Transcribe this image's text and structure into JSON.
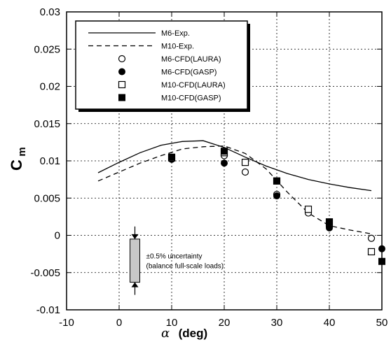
{
  "chart_data": {
    "type": "line",
    "xlabel_symbol": "α",
    "xlabel_unit": "(deg)",
    "ylabel_main": "C",
    "ylabel_sub": "m",
    "xlim": [
      -10,
      50
    ],
    "ylim": [
      -0.01,
      0.03
    ],
    "x_ticks": [
      "-10",
      "0",
      "10",
      "20",
      "30",
      "40",
      "50"
    ],
    "y_ticks": [
      "-0.01",
      "-0.005",
      "0",
      "0.005",
      "0.01",
      "0.015",
      "0.02",
      "0.025",
      "0.03"
    ],
    "grid": true,
    "legend_position": "top-left",
    "series": [
      {
        "name": "M6-Exp.",
        "kind": "line",
        "style": "solid",
        "x": [
          -4,
          0,
          4,
          8,
          12,
          16,
          20,
          24,
          28,
          32,
          36,
          40,
          44,
          48
        ],
        "y": [
          0.0084,
          0.0098,
          0.0111,
          0.0121,
          0.0126,
          0.0127,
          0.0118,
          0.0105,
          0.0093,
          0.0083,
          0.0075,
          0.0069,
          0.0064,
          0.006
        ]
      },
      {
        "name": "M10-Exp.",
        "kind": "line",
        "style": "dashed",
        "x": [
          -4,
          0,
          4,
          8,
          12,
          16,
          20,
          24,
          28,
          32,
          36,
          40,
          44,
          48
        ],
        "y": [
          0.0073,
          0.0085,
          0.0097,
          0.0107,
          0.0116,
          0.0119,
          0.012,
          0.011,
          0.0089,
          0.0058,
          0.003,
          0.0013,
          0.0007,
          0.0002
        ]
      },
      {
        "name": "M6-CFD(LAURA)",
        "kind": "marker",
        "marker": "circle-open",
        "x": [
          10,
          20,
          24,
          30,
          36,
          40,
          48
        ],
        "y": [
          0.0103,
          0.0107,
          0.0085,
          0.0055,
          0.003,
          0.0012,
          -0.0004
        ]
      },
      {
        "name": "M6-CFD(GASP)",
        "kind": "marker",
        "marker": "circle-filled",
        "x": [
          10,
          20,
          30,
          40,
          50
        ],
        "y": [
          0.0102,
          0.0097,
          0.0053,
          0.001,
          -0.0018
        ]
      },
      {
        "name": "M10-CFD(LAURA)",
        "kind": "marker",
        "marker": "square-open",
        "x": [
          10,
          20,
          24,
          30,
          36,
          40,
          48
        ],
        "y": [
          0.0104,
          0.0111,
          0.0098,
          0.0073,
          0.0035,
          0.0018,
          -0.0022
        ]
      },
      {
        "name": "M10-CFD(GASP)",
        "kind": "marker",
        "marker": "square-filled",
        "x": [
          10,
          20,
          30,
          40,
          50
        ],
        "y": [
          0.0105,
          0.0113,
          0.0073,
          0.0018,
          -0.0035
        ]
      }
    ],
    "annotation": {
      "line1": "±0.5% uncertainty",
      "line2": "(balance full-scale loads)",
      "bar_x": 3,
      "bar_top": -0.0005,
      "bar_bottom": -0.0063
    }
  }
}
